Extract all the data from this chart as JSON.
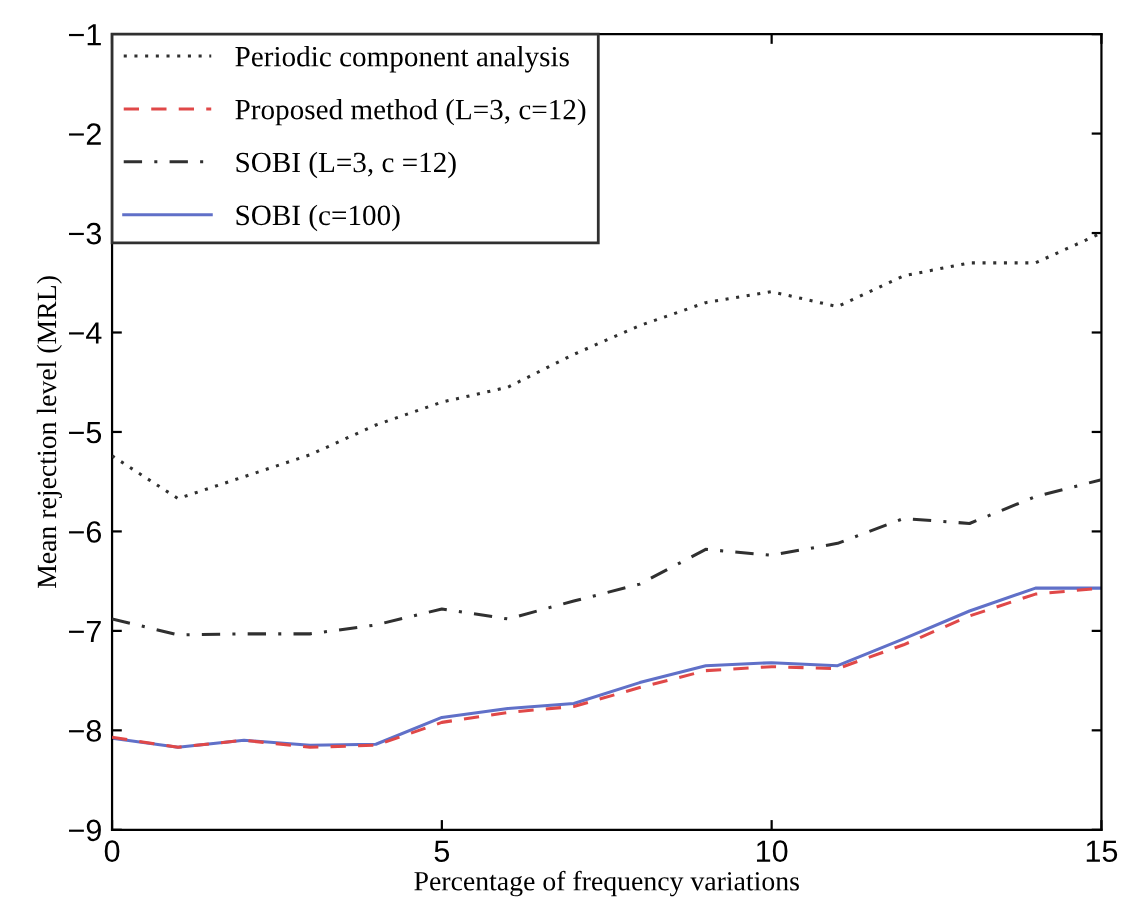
{
  "chart_data": {
    "type": "line",
    "xlabel": "Percentage of frequency variations",
    "ylabel": "Mean rejection level (MRL)",
    "x": [
      0,
      1,
      2,
      3,
      4,
      5,
      6,
      7,
      8,
      9,
      10,
      11,
      12,
      13,
      14,
      15
    ],
    "series": [
      {
        "name": "Periodic component analysis",
        "color": "#303030",
        "line_style": "dotted",
        "values": [
          -5.24,
          -5.67,
          -5.45,
          -5.23,
          -4.93,
          -4.7,
          -4.55,
          -4.22,
          -3.93,
          -3.7,
          -3.59,
          -3.74,
          -3.43,
          -3.3,
          -3.3,
          -3.0
        ]
      },
      {
        "name": "Proposed method (L=3, c=12)",
        "color": "#e04848",
        "line_style": "dashed",
        "values": [
          -8.07,
          -8.17,
          -8.1,
          -8.17,
          -8.15,
          -7.92,
          -7.82,
          -7.76,
          -7.57,
          -7.4,
          -7.36,
          -7.38,
          -7.14,
          -6.85,
          -6.63,
          -6.57
        ]
      },
      {
        "name": "SOBI (L=3, c =12)",
        "color": "#303030",
        "line_style": "dashdot",
        "values": [
          -6.88,
          -7.04,
          -7.03,
          -7.03,
          -6.94,
          -6.78,
          -6.88,
          -6.7,
          -6.53,
          -6.18,
          -6.24,
          -6.12,
          -5.87,
          -5.92,
          -5.65,
          -5.48
        ]
      },
      {
        "name": "SOBI (c=100)",
        "color": "#6070c8",
        "line_style": "solid",
        "values": [
          -8.08,
          -8.17,
          -8.1,
          -8.15,
          -8.14,
          -7.87,
          -7.78,
          -7.73,
          -7.52,
          -7.35,
          -7.32,
          -7.35,
          -7.08,
          -6.8,
          -6.57,
          -6.57
        ]
      }
    ],
    "xlim": [
      0,
      15
    ],
    "xticks": [
      0,
      5,
      10,
      15
    ],
    "ylim": [
      -9,
      -1
    ],
    "yticks": [
      -9,
      -8,
      -7,
      -6,
      -5,
      -4,
      -3,
      -2,
      -1
    ],
    "grid": false,
    "legend": "top left",
    "marker": "none"
  }
}
